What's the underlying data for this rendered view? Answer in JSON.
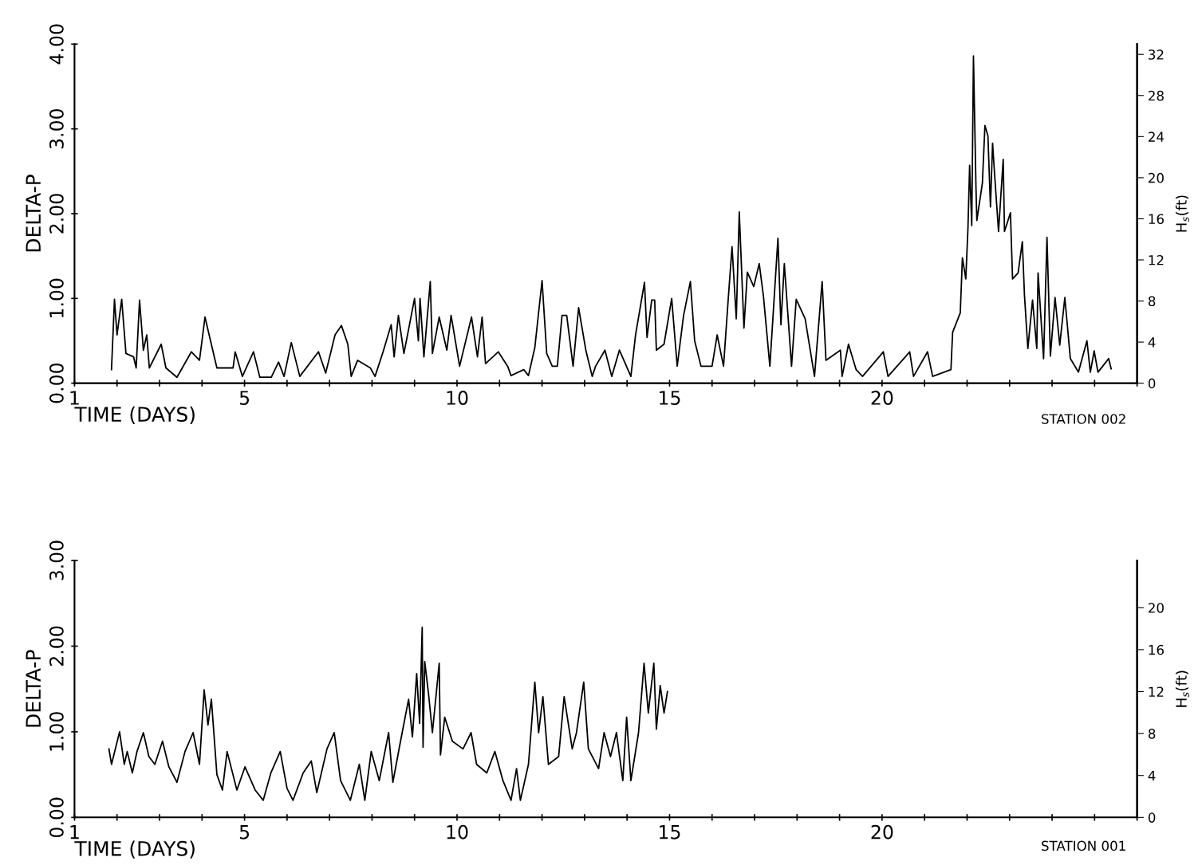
{
  "chart_data": [
    {
      "type": "line",
      "xlabel": "TIME (DAYS)",
      "ylabel": "DELTA-P",
      "y2label": "H$_{s}$(ft)",
      "annotations": [
        "STATION 002"
      ],
      "xlim": [
        1,
        26
      ],
      "xticks": [
        1,
        {
          "value": 2,
          "label": null
        },
        {
          "value": 3,
          "label": null
        },
        {
          "value": 4,
          "label": null
        },
        5,
        {
          "value": 6,
          "label": null
        },
        {
          "value": 7,
          "label": null
        },
        {
          "value": 8,
          "label": null
        },
        {
          "value": 9,
          "label": null
        },
        10,
        {
          "value": 11,
          "label": null
        },
        {
          "value": 12,
          "label": null
        },
        {
          "value": 13,
          "label": null
        },
        {
          "value": 14,
          "label": null
        },
        15,
        {
          "value": 16,
          "label": null
        },
        {
          "value": 17,
          "label": null
        },
        {
          "value": 18,
          "label": null
        },
        {
          "value": 19,
          "label": null
        },
        20,
        {
          "value": 21,
          "label": null
        },
        {
          "value": 22,
          "label": null
        },
        {
          "value": 23,
          "label": null
        },
        {
          "value": 24,
          "label": null
        },
        {
          "value": 25,
          "label": null
        },
        {
          "value": 26,
          "label": null
        }
      ],
      "ylim": [
        0,
        4
      ],
      "yticks": [
        {
          "value": 0,
          "label": "0.00"
        },
        {
          "value": 1,
          "label": "1.00"
        },
        {
          "value": 2,
          "label": "2.00"
        },
        {
          "value": 3,
          "label": "3.00"
        },
        {
          "value": 4,
          "label": "4.00"
        }
      ],
      "y2lim": [
        0,
        33
      ],
      "y2ticks": [
        0,
        4,
        8,
        12,
        16,
        20,
        24,
        28,
        32
      ],
      "x": [
        1.87,
        1.94,
        2.0,
        2.11,
        2.21,
        2.39,
        2.45,
        2.53,
        2.62,
        2.7,
        2.76,
        3.04,
        3.15,
        3.41,
        3.75,
        3.94,
        4.07,
        4.2,
        4.35,
        4.73,
        4.78,
        4.95,
        5.21,
        5.36,
        5.63,
        5.8,
        5.93,
        6.1,
        6.3,
        6.74,
        6.91,
        7.13,
        7.28,
        7.43,
        7.51,
        7.66,
        7.96,
        8.07,
        8.26,
        8.45,
        8.52,
        8.62,
        8.75,
        9.0,
        9.09,
        9.13,
        9.22,
        9.37,
        9.42,
        9.58,
        9.76,
        9.86,
        10.06,
        10.34,
        10.48,
        10.59,
        10.67,
        10.97,
        11.19,
        11.27,
        11.57,
        11.68,
        11.83,
        12.0,
        12.11,
        12.24,
        12.36,
        12.47,
        12.58,
        12.73,
        12.86,
        13.03,
        13.18,
        13.26,
        13.48,
        13.64,
        13.82,
        14.09,
        14.2,
        14.41,
        14.47,
        14.58,
        14.65,
        14.69,
        14.87,
        15.05,
        15.18,
        15.33,
        15.49,
        15.59,
        15.74,
        16.0,
        16.12,
        16.27,
        16.38,
        16.47,
        16.57,
        16.64,
        16.75,
        16.83,
        16.98,
        17.11,
        17.21,
        17.36,
        17.55,
        17.62,
        17.7,
        17.87,
        17.98,
        18.19,
        18.41,
        18.59,
        18.68,
        19.02,
        19.06,
        19.21,
        19.39,
        19.54,
        20.03,
        20.14,
        20.65,
        20.74,
        21.07,
        21.19,
        21.62,
        21.66,
        21.84,
        21.89,
        21.97,
        22.02,
        22.06,
        22.11,
        22.15,
        22.21,
        22.23,
        22.36,
        22.42,
        22.49,
        22.55,
        22.6,
        22.64,
        22.74,
        22.85,
        22.88,
        23.02,
        23.07,
        23.2,
        23.3,
        23.35,
        23.43,
        23.54,
        23.64,
        23.67,
        23.8,
        23.88,
        23.96,
        24.07,
        24.18,
        24.3,
        24.43,
        24.62,
        24.82,
        24.9,
        24.99,
        25.08,
        25.33,
        25.39
      ],
      "series": [
        {
          "color": "#000000",
          "values": [
            0.16,
            0.99,
            0.57,
            0.99,
            0.35,
            0.31,
            0.18,
            0.98,
            0.39,
            0.57,
            0.18,
            0.46,
            0.18,
            0.07,
            0.37,
            0.27,
            0.78,
            0.5,
            0.18,
            0.18,
            0.37,
            0.08,
            0.37,
            0.07,
            0.07,
            0.25,
            0.08,
            0.48,
            0.08,
            0.37,
            0.12,
            0.57,
            0.68,
            0.46,
            0.08,
            0.27,
            0.18,
            0.08,
            0.37,
            0.69,
            0.31,
            0.8,
            0.35,
            1.0,
            0.5,
            1.0,
            0.31,
            1.2,
            0.35,
            0.78,
            0.39,
            0.8,
            0.2,
            0.78,
            0.31,
            0.78,
            0.23,
            0.37,
            0.2,
            0.09,
            0.16,
            0.09,
            0.42,
            1.21,
            0.35,
            0.2,
            0.2,
            0.8,
            0.8,
            0.2,
            0.89,
            0.39,
            0.08,
            0.2,
            0.39,
            0.08,
            0.39,
            0.08,
            0.57,
            1.19,
            0.54,
            0.98,
            0.98,
            0.39,
            0.46,
            1.0,
            0.2,
            0.8,
            1.2,
            0.5,
            0.2,
            0.2,
            0.57,
            0.2,
            0.99,
            1.61,
            0.76,
            2.02,
            0.65,
            1.31,
            1.14,
            1.41,
            1.02,
            0.2,
            1.71,
            0.69,
            1.41,
            0.2,
            0.99,
            0.76,
            0.08,
            1.2,
            0.27,
            0.39,
            0.08,
            0.46,
            0.16,
            0.08,
            0.37,
            0.08,
            0.37,
            0.08,
            0.37,
            0.08,
            0.16,
            0.6,
            0.83,
            1.48,
            1.23,
            1.82,
            2.57,
            1.86,
            3.86,
            2.29,
            1.92,
            2.36,
            3.04,
            2.92,
            2.08,
            2.83,
            2.52,
            1.79,
            2.64,
            1.79,
            2.01,
            1.23,
            1.3,
            1.67,
            1.04,
            0.41,
            0.98,
            0.41,
            1.3,
            0.29,
            1.72,
            0.32,
            1.01,
            0.45,
            1.01,
            0.29,
            0.13,
            0.5,
            0.13,
            0.38,
            0.13,
            0.29,
            0.17
          ]
        }
      ]
    },
    {
      "type": "line",
      "xlabel": "TIME (DAYS)",
      "ylabel": "DELTA-P",
      "y2label": "H$_{s}$(ft)",
      "annotations": [
        "STATION 001"
      ],
      "xlim": [
        1,
        26
      ],
      "xticks": [
        1,
        {
          "value": 2,
          "label": null
        },
        {
          "value": 3,
          "label": null
        },
        {
          "value": 4,
          "label": null
        },
        5,
        {
          "value": 6,
          "label": null
        },
        {
          "value": 7,
          "label": null
        },
        {
          "value": 8,
          "label": null
        },
        {
          "value": 9,
          "label": null
        },
        10,
        {
          "value": 11,
          "label": null
        },
        {
          "value": 12,
          "label": null
        },
        {
          "value": 13,
          "label": null
        },
        {
          "value": 14,
          "label": null
        },
        15,
        {
          "value": 16,
          "label": null
        },
        {
          "value": 17,
          "label": null
        },
        {
          "value": 18,
          "label": null
        },
        {
          "value": 19,
          "label": null
        },
        20,
        {
          "value": 21,
          "label": null
        },
        {
          "value": 22,
          "label": null
        },
        {
          "value": 23,
          "label": null
        },
        {
          "value": 24,
          "label": null
        },
        {
          "value": 25,
          "label": null
        },
        {
          "value": 26,
          "label": null
        }
      ],
      "ylim": [
        0,
        3
      ],
      "yticks": [
        {
          "value": 0,
          "label": "0.00"
        },
        {
          "value": 1,
          "label": "1.00"
        },
        {
          "value": 2,
          "label": "2.00"
        },
        {
          "value": 3,
          "label": "3.00"
        }
      ],
      "y2lim": [
        0,
        24.5
      ],
      "y2ticks": [
        0,
        4,
        8,
        12,
        16,
        20
      ],
      "x": [
        1.81,
        1.87,
        2.06,
        2.17,
        2.24,
        2.36,
        2.47,
        2.62,
        2.75,
        2.89,
        3.07,
        3.22,
        3.41,
        3.6,
        3.79,
        3.94,
        4.05,
        4.14,
        4.22,
        4.35,
        4.48,
        4.59,
        4.82,
        5.01,
        5.25,
        5.44,
        5.62,
        5.84,
        6.0,
        6.14,
        6.38,
        6.57,
        6.7,
        6.94,
        7.11,
        7.26,
        7.49,
        7.7,
        7.83,
        7.98,
        8.17,
        8.39,
        8.49,
        8.67,
        8.86,
        8.95,
        9.05,
        9.12,
        9.18,
        9.2,
        9.24,
        9.33,
        9.42,
        9.58,
        9.61,
        9.71,
        9.89,
        10.14,
        10.33,
        10.46,
        10.7,
        10.89,
        11.08,
        11.27,
        11.4,
        11.49,
        11.68,
        11.83,
        11.92,
        12.02,
        12.15,
        12.39,
        12.52,
        12.71,
        12.81,
        12.98,
        13.09,
        13.33,
        13.46,
        13.61,
        13.75,
        13.9,
        13.99,
        14.09,
        14.27,
        14.4,
        14.5,
        14.63,
        14.69,
        14.78,
        14.87,
        14.95
      ],
      "series": [
        {
          "color": "#000000",
          "values": [
            0.8,
            0.62,
            1.0,
            0.62,
            0.77,
            0.52,
            0.77,
            0.99,
            0.71,
            0.62,
            0.89,
            0.59,
            0.41,
            0.77,
            0.99,
            0.62,
            1.49,
            1.08,
            1.38,
            0.5,
            0.32,
            0.77,
            0.32,
            0.59,
            0.32,
            0.2,
            0.52,
            0.77,
            0.34,
            0.2,
            0.52,
            0.66,
            0.29,
            0.8,
            0.99,
            0.43,
            0.2,
            0.62,
            0.2,
            0.77,
            0.43,
            0.99,
            0.41,
            0.89,
            1.38,
            0.94,
            1.68,
            1.1,
            2.22,
            0.82,
            1.82,
            1.44,
            0.99,
            1.8,
            0.73,
            1.17,
            0.89,
            0.8,
            0.99,
            0.62,
            0.52,
            0.77,
            0.43,
            0.2,
            0.57,
            0.2,
            0.62,
            1.58,
            0.99,
            1.41,
            0.62,
            0.71,
            1.41,
            0.8,
            0.99,
            1.58,
            0.8,
            0.57,
            0.99,
            0.71,
            0.99,
            0.43,
            1.17,
            0.43,
            0.99,
            1.8,
            1.22,
            1.8,
            1.03,
            1.54,
            1.22,
            1.47
          ]
        }
      ]
    }
  ]
}
